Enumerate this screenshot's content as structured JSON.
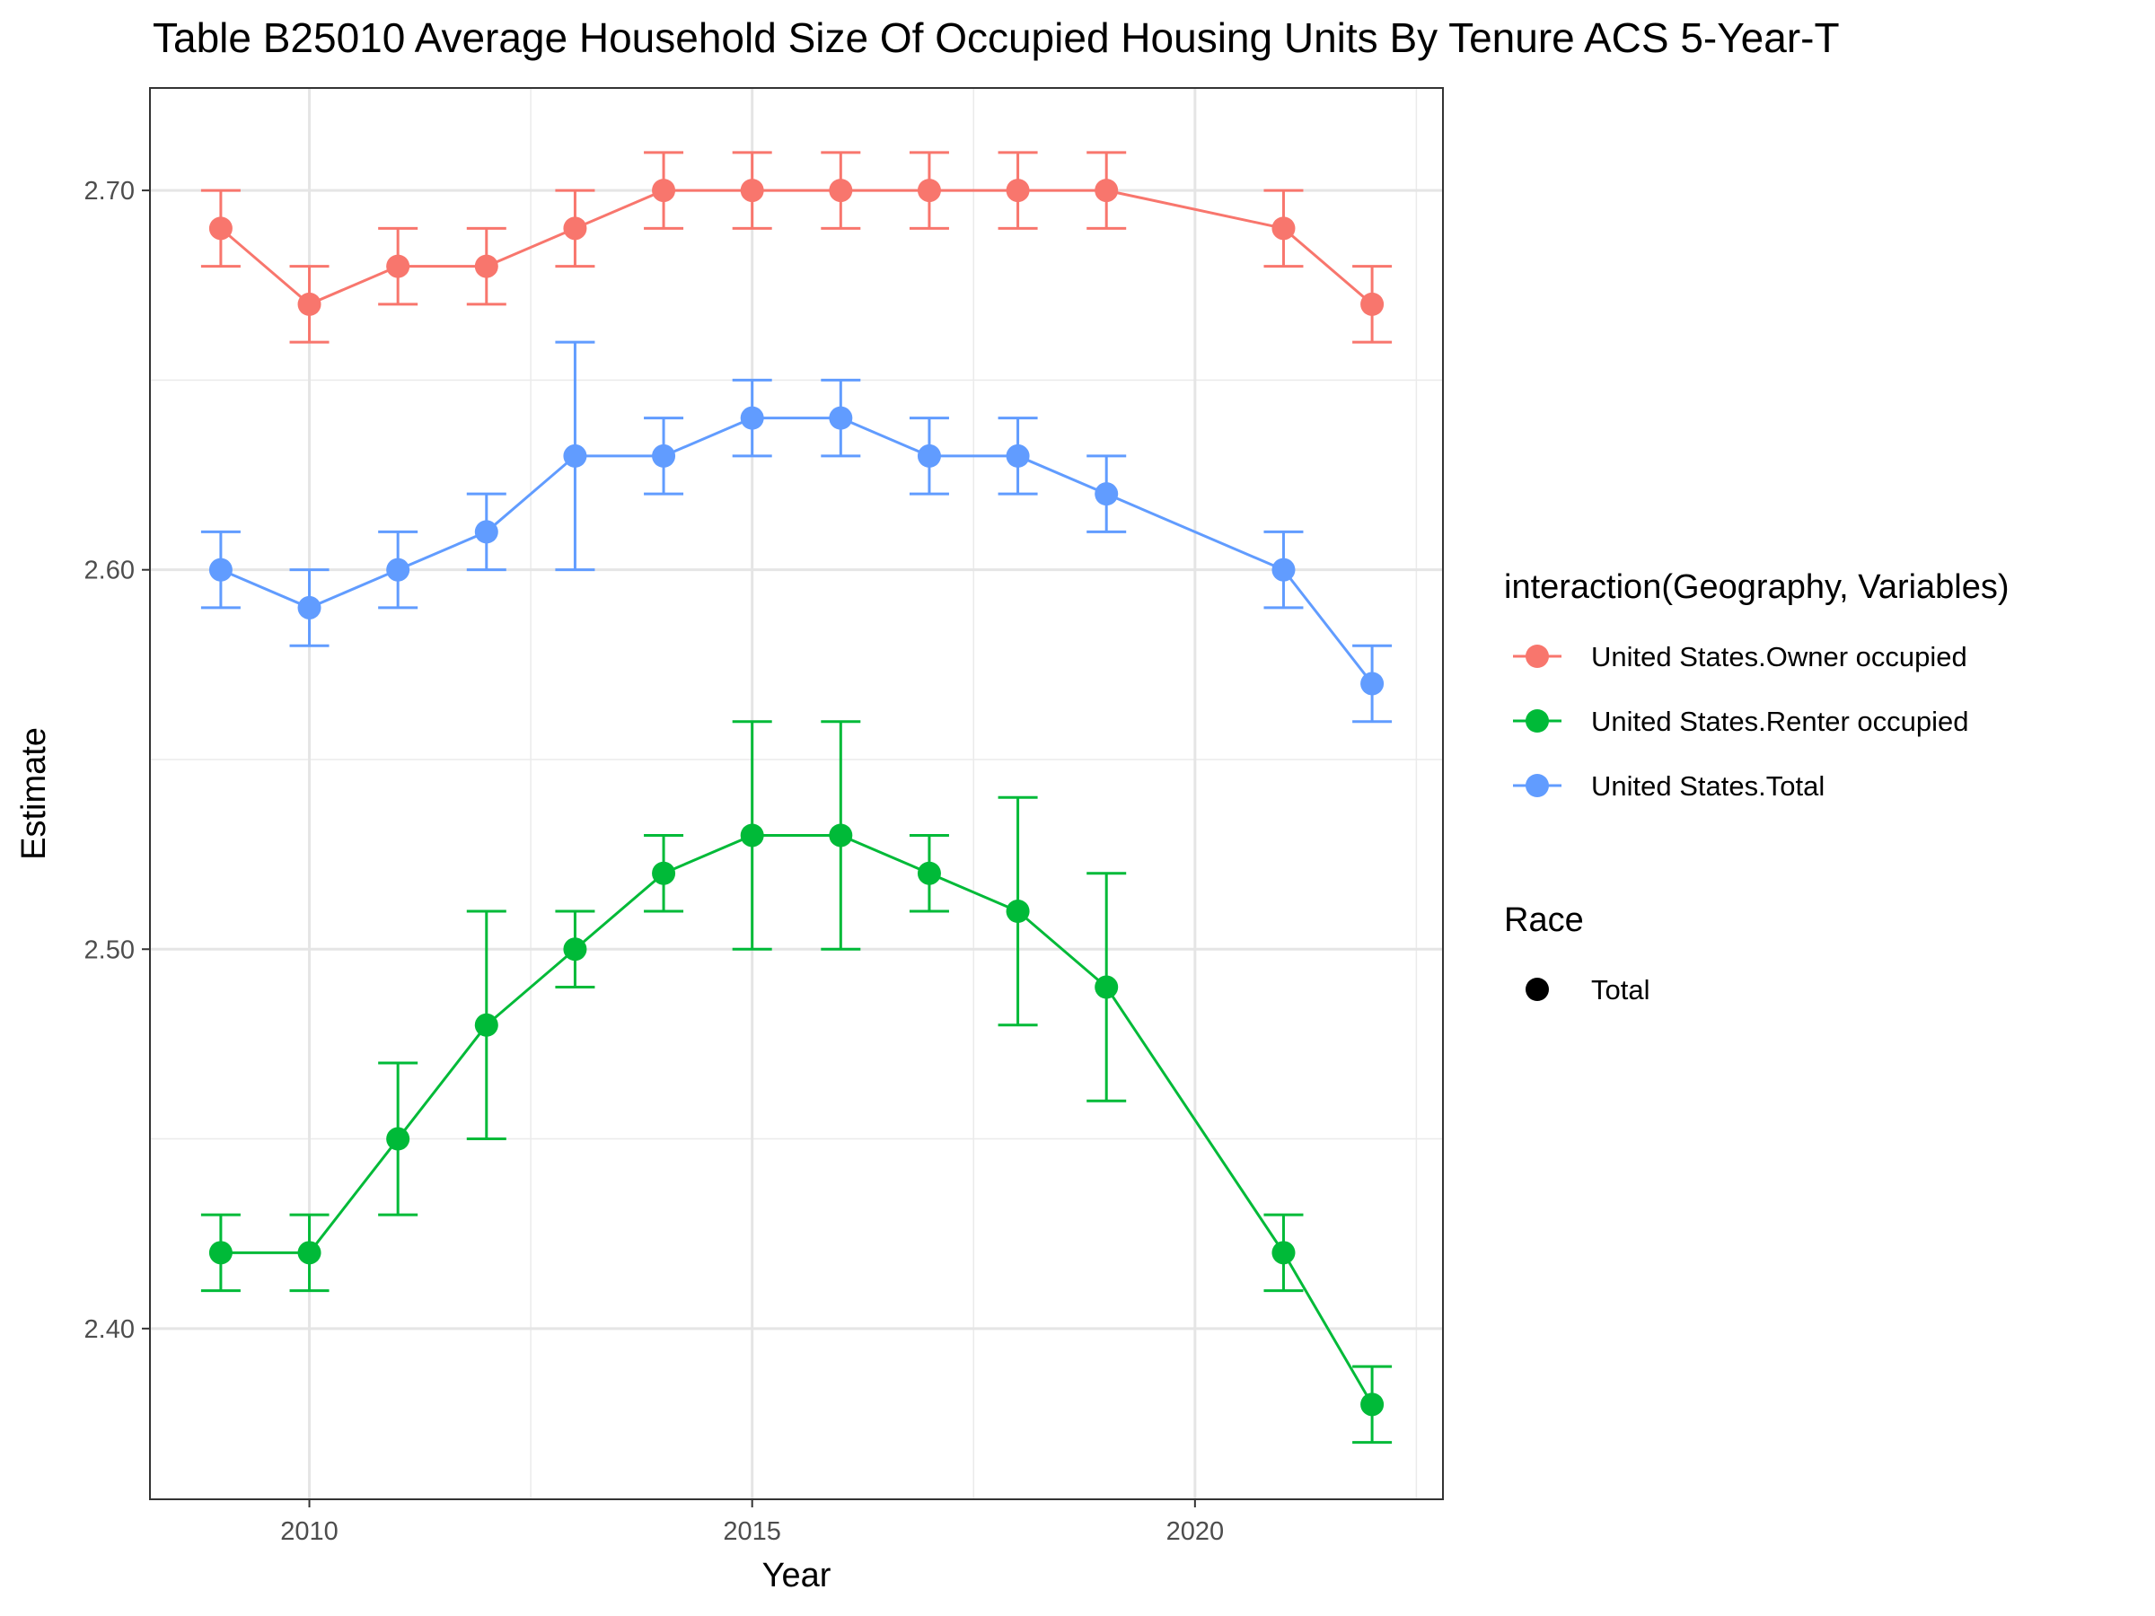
{
  "chart_data": {
    "type": "line",
    "title": "Table B25010 Average Household Size Of Occupied Housing Units By Tenure ACS 5-Year-T",
    "xlabel": "Year",
    "ylabel": "Estimate",
    "xlim": [
      2008.2,
      2022.8
    ],
    "ylim": [
      2.355,
      2.727
    ],
    "x_ticks": [
      2010,
      2015,
      2020
    ],
    "y_ticks": [
      2.4,
      2.5,
      2.6,
      2.7
    ],
    "y_tick_labels": [
      "2.40",
      "2.50",
      "2.60",
      "2.70"
    ],
    "grid": true,
    "error_bars": true,
    "legend_position": "right",
    "legend": {
      "color_title": "interaction(Geography, Variables)",
      "shape_title": "Race",
      "shape_entries": [
        "Total"
      ]
    },
    "series": [
      {
        "name": "United States.Owner occupied",
        "color": "#F8766D",
        "points": [
          {
            "x": 2009,
            "y": 2.69,
            "lo": 2.68,
            "hi": 2.7
          },
          {
            "x": 2010,
            "y": 2.67,
            "lo": 2.66,
            "hi": 2.68
          },
          {
            "x": 2011,
            "y": 2.68,
            "lo": 2.67,
            "hi": 2.69
          },
          {
            "x": 2012,
            "y": 2.68,
            "lo": 2.67,
            "hi": 2.69
          },
          {
            "x": 2013,
            "y": 2.69,
            "lo": 2.68,
            "hi": 2.7
          },
          {
            "x": 2014,
            "y": 2.7,
            "lo": 2.69,
            "hi": 2.71
          },
          {
            "x": 2015,
            "y": 2.7,
            "lo": 2.69,
            "hi": 2.71
          },
          {
            "x": 2016,
            "y": 2.7,
            "lo": 2.69,
            "hi": 2.71
          },
          {
            "x": 2017,
            "y": 2.7,
            "lo": 2.69,
            "hi": 2.71
          },
          {
            "x": 2018,
            "y": 2.7,
            "lo": 2.69,
            "hi": 2.71
          },
          {
            "x": 2019,
            "y": 2.7,
            "lo": 2.69,
            "hi": 2.71
          },
          {
            "x": 2021,
            "y": 2.69,
            "lo": 2.68,
            "hi": 2.7
          },
          {
            "x": 2022,
            "y": 2.67,
            "lo": 2.66,
            "hi": 2.68
          }
        ]
      },
      {
        "name": "United States.Renter occupied",
        "color": "#00BA38",
        "points": [
          {
            "x": 2009,
            "y": 2.42,
            "lo": 2.41,
            "hi": 2.43
          },
          {
            "x": 2010,
            "y": 2.42,
            "lo": 2.41,
            "hi": 2.43
          },
          {
            "x": 2011,
            "y": 2.45,
            "lo": 2.43,
            "hi": 2.47
          },
          {
            "x": 2012,
            "y": 2.48,
            "lo": 2.45,
            "hi": 2.51
          },
          {
            "x": 2013,
            "y": 2.5,
            "lo": 2.49,
            "hi": 2.51
          },
          {
            "x": 2014,
            "y": 2.52,
            "lo": 2.51,
            "hi": 2.53
          },
          {
            "x": 2015,
            "y": 2.53,
            "lo": 2.5,
            "hi": 2.56
          },
          {
            "x": 2016,
            "y": 2.53,
            "lo": 2.5,
            "hi": 2.56
          },
          {
            "x": 2017,
            "y": 2.52,
            "lo": 2.51,
            "hi": 2.53
          },
          {
            "x": 2018,
            "y": 2.51,
            "lo": 2.48,
            "hi": 2.54
          },
          {
            "x": 2019,
            "y": 2.49,
            "lo": 2.46,
            "hi": 2.52
          },
          {
            "x": 2021,
            "y": 2.42,
            "lo": 2.41,
            "hi": 2.43
          },
          {
            "x": 2022,
            "y": 2.38,
            "lo": 2.37,
            "hi": 2.39
          }
        ]
      },
      {
        "name": "United States.Total",
        "color": "#619CFF",
        "points": [
          {
            "x": 2009,
            "y": 2.6,
            "lo": 2.59,
            "hi": 2.61
          },
          {
            "x": 2010,
            "y": 2.59,
            "lo": 2.58,
            "hi": 2.6
          },
          {
            "x": 2011,
            "y": 2.6,
            "lo": 2.59,
            "hi": 2.61
          },
          {
            "x": 2012,
            "y": 2.61,
            "lo": 2.6,
            "hi": 2.62
          },
          {
            "x": 2013,
            "y": 2.63,
            "lo": 2.6,
            "hi": 2.66
          },
          {
            "x": 2014,
            "y": 2.63,
            "lo": 2.62,
            "hi": 2.64
          },
          {
            "x": 2015,
            "y": 2.64,
            "lo": 2.63,
            "hi": 2.65
          },
          {
            "x": 2016,
            "y": 2.64,
            "lo": 2.63,
            "hi": 2.65
          },
          {
            "x": 2017,
            "y": 2.63,
            "lo": 2.62,
            "hi": 2.64
          },
          {
            "x": 2018,
            "y": 2.63,
            "lo": 2.62,
            "hi": 2.64
          },
          {
            "x": 2019,
            "y": 2.62,
            "lo": 2.61,
            "hi": 2.63
          },
          {
            "x": 2021,
            "y": 2.6,
            "lo": 2.59,
            "hi": 2.61
          },
          {
            "x": 2022,
            "y": 2.57,
            "lo": 2.56,
            "hi": 2.58
          }
        ]
      }
    ]
  }
}
